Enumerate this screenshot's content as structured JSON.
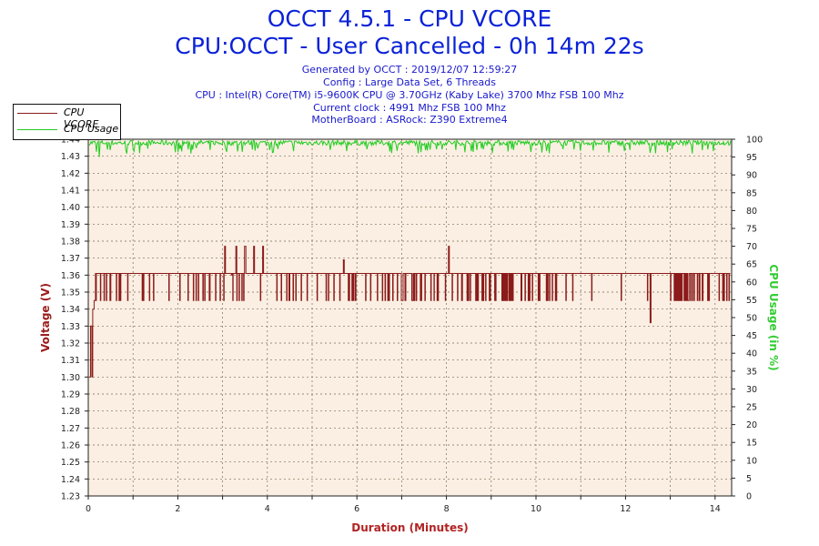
{
  "header": {
    "title_line1": "OCCT 4.5.1 - CPU VCORE",
    "title_line2": "CPU:OCCT - User Cancelled - 0h 14m 22s",
    "info": [
      "Generated by OCCT : 2019/12/07 12:59:27",
      "Config : Large Data Set, 6 Threads",
      "CPU : Intel(R) Core(TM) i5-9600K CPU @ 3.70GHz (Kaby Lake) 3700 Mhz FSB 100 Mhz",
      "Current clock : 4991 Mhz FSB 100 Mhz",
      "MotherBoard : ASRock: Z390 Extreme4"
    ]
  },
  "legend": {
    "items": [
      {
        "label": "CPU VCORE",
        "color": "#8b1a1a"
      },
      {
        "label": "CPU Usage",
        "color": "#22cc22"
      }
    ],
    "placement": "top-left"
  },
  "colors": {
    "vcore": "#8b1a1a",
    "usage": "#22cc22",
    "plot_background": "#faefe2",
    "grid": "#7a6a5a",
    "title": "#0a22d8",
    "axis_label_left": "#9b1c1c",
    "axis_label_right": "#33cc33",
    "axis_label_x": "#b22222"
  },
  "chart_data": {
    "type": "line",
    "title": "OCCT 4.5.1 - CPU VCORE",
    "subtitle": "CPU:OCCT - User Cancelled - 0h 14m 22s",
    "xlabel": "Duration (Minutes)",
    "ylabel": "Voltage (V)",
    "y2label": "CPU Usage (in %)",
    "xlim": [
      0,
      14.37
    ],
    "ylim": [
      1.23,
      1.44
    ],
    "y2lim": [
      0,
      100
    ],
    "x_ticks": [
      "0",
      "2",
      "4",
      "6",
      "8",
      "10",
      "12",
      "14"
    ],
    "y_ticks": [
      "1.23",
      "1.24",
      "1.25",
      "1.26",
      "1.27",
      "1.28",
      "1.29",
      "1.30",
      "1.31",
      "1.32",
      "1.33",
      "1.34",
      "1.35",
      "1.36",
      "1.37",
      "1.38",
      "1.39",
      "1.40",
      "1.41",
      "1.42",
      "1.43",
      "1.44"
    ],
    "y2_ticks": [
      "0",
      "5",
      "10",
      "15",
      "20",
      "25",
      "30",
      "35",
      "40",
      "45",
      "50",
      "55",
      "60",
      "65",
      "70",
      "75",
      "80",
      "85",
      "90",
      "95",
      "100"
    ],
    "grid": true,
    "series": [
      {
        "name": "CPU VCORE",
        "axis": "left",
        "baseline": 1.361,
        "x": [
          0,
          0.05,
          0.1,
          0.15,
          0.2,
          0.3,
          0.5,
          0.8,
          1.0,
          1.2,
          1.4,
          1.6,
          1.8,
          2.0,
          2.5,
          3.0,
          3.05,
          3.1,
          3.2,
          3.3,
          3.5,
          3.6,
          3.7,
          3.8,
          3.9,
          4.0,
          4.2,
          4.4,
          4.6,
          4.8,
          5.0,
          5.2,
          5.4,
          5.6,
          5.7,
          5.8,
          6.0,
          6.2,
          6.4,
          6.6,
          6.8,
          7.0,
          7.2,
          7.4,
          7.6,
          7.8,
          8.0,
          8.05,
          8.1,
          8.3,
          8.6,
          9.0,
          9.5,
          10.0,
          10.5,
          11.0,
          11.5,
          12.0,
          12.5,
          12.55,
          12.6,
          13.0,
          13.5,
          14.0,
          14.2
        ],
        "values": [
          1.3,
          1.32,
          1.35,
          1.36,
          1.35,
          1.361,
          1.361,
          1.361,
          1.361,
          1.361,
          1.361,
          1.361,
          1.361,
          1.361,
          1.361,
          1.361,
          1.377,
          1.361,
          1.36,
          1.377,
          1.377,
          1.361,
          1.377,
          1.361,
          1.377,
          1.361,
          1.361,
          1.361,
          1.361,
          1.361,
          1.361,
          1.361,
          1.361,
          1.361,
          1.369,
          1.361,
          1.361,
          1.361,
          1.361,
          1.361,
          1.361,
          1.361,
          1.361,
          1.361,
          1.361,
          1.361,
          1.361,
          1.377,
          1.361,
          1.361,
          1.361,
          1.361,
          1.361,
          1.361,
          1.361,
          1.361,
          1.361,
          1.361,
          1.361,
          1.332,
          1.361,
          1.361,
          1.361,
          1.361,
          1.361
        ],
        "dip_to": 1.345
      },
      {
        "name": "CPU Usage",
        "axis": "right",
        "x": [
          0,
          0.25,
          2.3,
          5.4,
          9.5,
          12.1,
          14.3
        ],
        "values": [
          99,
          95,
          96,
          97,
          97,
          97,
          99
        ],
        "typical": 99
      }
    ]
  }
}
